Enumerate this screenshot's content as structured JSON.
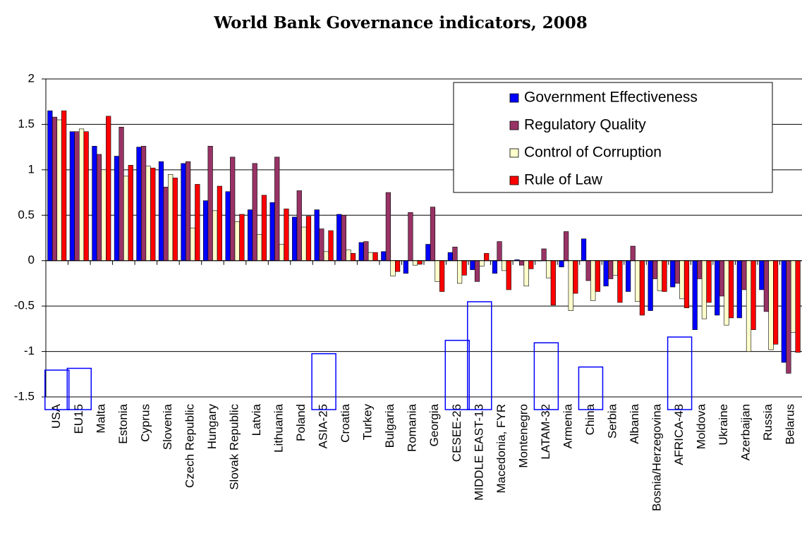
{
  "chart_data": {
    "type": "bar",
    "title": "World Bank Governance indicators, 2008",
    "categories": [
      "USA",
      "EU15",
      "Malta",
      "Estonia",
      "Cyprus",
      "Slovenia",
      "Czech Republic",
      "Hungary",
      "Slovak Republic",
      "Latvia",
      "Lithuania",
      "Poland",
      "ASIA-25",
      "Croatia",
      "Turkey",
      "Bulgaria",
      "Romania",
      "Georgia",
      "CESEE-26",
      "MIDDLE EAST-13",
      "Macedonia, FYR",
      "Montenegro",
      "LATAM-32",
      "Armenia",
      "China",
      "Serbia",
      "Albania",
      "Bosnia/Herzegovina",
      "AFRICA-48",
      "Moldova",
      "Ukraine",
      "Azerbaijan",
      "Russia",
      "Belarus"
    ],
    "series": [
      {
        "name": "Government Effectiveness",
        "color": "#0000ff",
        "values": [
          1.65,
          1.42,
          1.26,
          1.15,
          1.25,
          1.09,
          1.07,
          0.66,
          0.76,
          0.56,
          0.64,
          0.48,
          0.56,
          0.51,
          0.2,
          0.1,
          -0.14,
          0.18,
          0.09,
          -0.1,
          -0.14,
          0.01,
          0.0,
          -0.07,
          0.24,
          -0.28,
          -0.34,
          -0.55,
          -0.29,
          -0.76,
          -0.6,
          -0.63,
          -0.32,
          -1.12
        ]
      },
      {
        "name": "Regulatory Quality",
        "color": "#993366",
        "values": [
          1.58,
          1.42,
          1.17,
          1.47,
          1.26,
          0.81,
          1.09,
          1.26,
          1.14,
          1.07,
          1.14,
          0.77,
          0.35,
          0.5,
          0.21,
          0.75,
          0.53,
          0.59,
          0.15,
          -0.23,
          0.21,
          -0.05,
          0.13,
          0.32,
          -0.22,
          -0.2,
          0.16,
          -0.2,
          -0.25,
          -0.2,
          -0.39,
          -0.32,
          -0.56,
          -1.24
        ]
      },
      {
        "name": "Control of Corruption",
        "color": "#ffffcc",
        "values": [
          1.55,
          1.45,
          1.0,
          0.93,
          1.04,
          0.95,
          0.36,
          0.55,
          0.43,
          0.29,
          0.18,
          0.37,
          0.1,
          0.12,
          0.09,
          -0.17,
          -0.05,
          -0.23,
          -0.25,
          -0.06,
          -0.11,
          -0.28,
          -0.19,
          -0.55,
          -0.44,
          -0.16,
          -0.45,
          -0.33,
          -0.42,
          -0.64,
          -0.71,
          -1.0,
          -0.98,
          -0.79
        ]
      },
      {
        "name": "Rule of Law",
        "color": "#ff0000",
        "values": [
          1.65,
          1.42,
          1.59,
          1.05,
          1.02,
          0.91,
          0.84,
          0.82,
          0.51,
          0.72,
          0.57,
          0.49,
          0.33,
          0.08,
          0.09,
          -0.12,
          -0.04,
          -0.34,
          -0.16,
          0.08,
          -0.32,
          -0.09,
          -0.49,
          -0.36,
          -0.34,
          -0.46,
          -0.6,
          -0.34,
          -0.52,
          -0.46,
          -0.63,
          -0.76,
          -0.92,
          -1.01
        ]
      }
    ],
    "ylim": [
      -1.5,
      2
    ],
    "yticks": [
      -1.5,
      -1,
      -0.5,
      0,
      0.5,
      1,
      1.5,
      2
    ],
    "grid": true,
    "legend": "top-right"
  }
}
